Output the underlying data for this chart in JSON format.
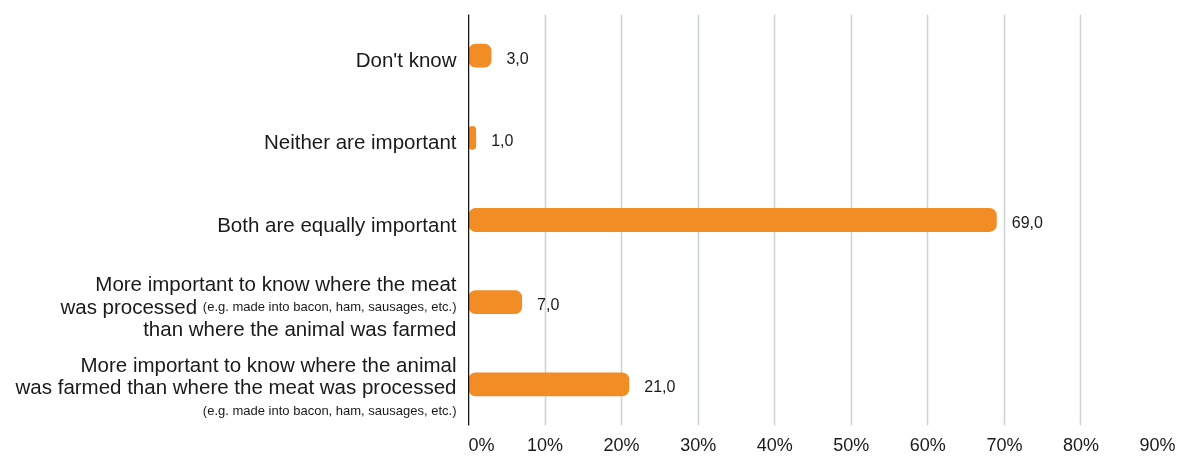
{
  "chart_data": {
    "type": "bar",
    "orientation": "horizontal",
    "categories": [
      "Don't know",
      "Neither are important",
      "Both are equally important",
      "More important to know where the meat\nwas processed (e.g. made into bacon, ham, sausages, etc.)\nthan where the animal was farmed",
      "More important to know where the animal\nwas farmed than where the meat was processed\n(e.g. made into bacon, ham, sausages, etc.)"
    ],
    "values": [
      3,
      1,
      69,
      7,
      21
    ],
    "value_labels": [
      "3,0",
      "1,0",
      "69,0",
      "7,0",
      "21,0"
    ],
    "color": "#f28c25",
    "xlim": [
      0,
      90
    ],
    "xticks": [
      {
        "value": 0,
        "label": "0%"
      },
      {
        "value": 10,
        "label": "10%"
      },
      {
        "value": 20,
        "label": "20%"
      },
      {
        "value": 30,
        "label": "30%"
      },
      {
        "value": 40,
        "label": "40%"
      },
      {
        "value": 50,
        "label": "50%"
      },
      {
        "value": 60,
        "label": "60%"
      },
      {
        "value": 70,
        "label": "70%"
      },
      {
        "value": 80,
        "label": "80%"
      },
      {
        "value": 90,
        "label": "90%"
      }
    ],
    "grid": "x"
  }
}
